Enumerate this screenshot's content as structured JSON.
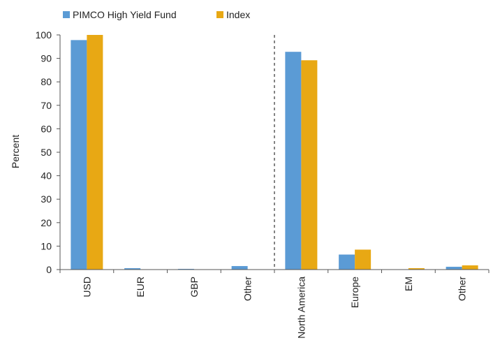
{
  "chart_data": {
    "type": "bar",
    "title": "",
    "xlabel": "",
    "ylabel": "Percent",
    "ylim": [
      0,
      100
    ],
    "yticks": [
      0,
      10,
      20,
      30,
      40,
      50,
      60,
      70,
      80,
      90,
      100
    ],
    "grid": false,
    "legend_position": "top-left",
    "divider_after_category_index": 3,
    "categories": [
      "USD",
      "EUR",
      "GBP",
      "Other",
      "North America",
      "Europe",
      "EM",
      "Other"
    ],
    "series": [
      {
        "name": "PIMCO High Yield Fund",
        "color": "#5b9bd5",
        "values": [
          97.8,
          0.6,
          0.3,
          1.5,
          92.8,
          6.4,
          0.0,
          1.2
        ]
      },
      {
        "name": "Index",
        "color": "#e8a814",
        "values": [
          100.0,
          0.0,
          0.0,
          0.0,
          89.2,
          8.5,
          0.6,
          1.8
        ]
      }
    ]
  }
}
